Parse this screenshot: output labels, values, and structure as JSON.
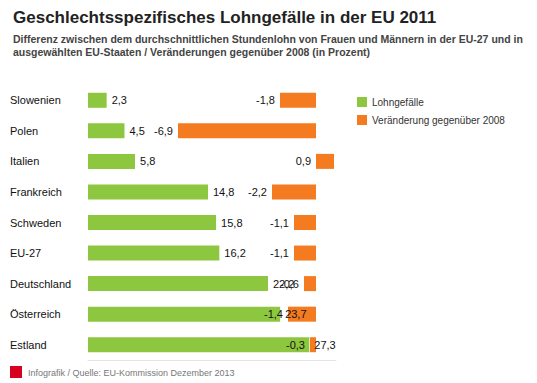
{
  "chart_data": [
    {
      "type": "bar",
      "title": "Geschlechtsspezifisches Lohngefälle in der EU 2011",
      "subtitle": "Differenz zwischen dem durchschnittlichen Stundenlohn von Frauen und Männern in der EU-27 und in ausgewählten EU-Staaten / Veränderungen gegenüber 2008 (in Prozent)",
      "annotations": [
        "Infografik / Quelle: EU-Kommission Dezember 2013"
      ],
      "orientation": "horizontal",
      "categories": [
        "Slowenien",
        "Polen",
        "Italien",
        "Frankreich",
        "Schweden",
        "EU-27",
        "Deutschland",
        "Österreich",
        "Estland"
      ],
      "series": [
        {
          "name": "Lohngefälle",
          "color": "#8dc63f",
          "values": [
            2.3,
            4.5,
            5.8,
            14.8,
            15.8,
            16.2,
            22.2,
            23.7,
            27.3
          ],
          "value_labels": [
            "2,3",
            "4,5",
            "5,8",
            "14,8",
            "15,8",
            "16,2",
            "22,2",
            "23,7",
            "27,3"
          ]
        }
      ],
      "xlim": [
        0,
        28
      ],
      "grid": false,
      "legend": "top-right",
      "data_labels": true,
      "tick_labels": "y"
    },
    {
      "type": "bar",
      "orientation": "horizontal",
      "categories": [
        "Slowenien",
        "Polen",
        "Italien",
        "Frankreich",
        "Schweden",
        "EU-27",
        "Deutschland",
        "Österreich",
        "Estland"
      ],
      "series": [
        {
          "name": "Veränderung gegenüber 2008",
          "color": "#f47b20",
          "values": [
            -1.8,
            -6.9,
            0.9,
            -2.2,
            -1.1,
            -1.1,
            -0.6,
            -1.4,
            -0.3
          ],
          "value_labels": [
            "-1,8",
            "-6,9",
            "0,9",
            "-2,2",
            "-1,1",
            "-1,1",
            "-0,6",
            "-1,4",
            "-0,3"
          ]
        }
      ],
      "xlim": [
        -7,
        1
      ],
      "grid": false,
      "legend": "top-right",
      "data_labels": true,
      "tick_labels": false
    }
  ]
}
